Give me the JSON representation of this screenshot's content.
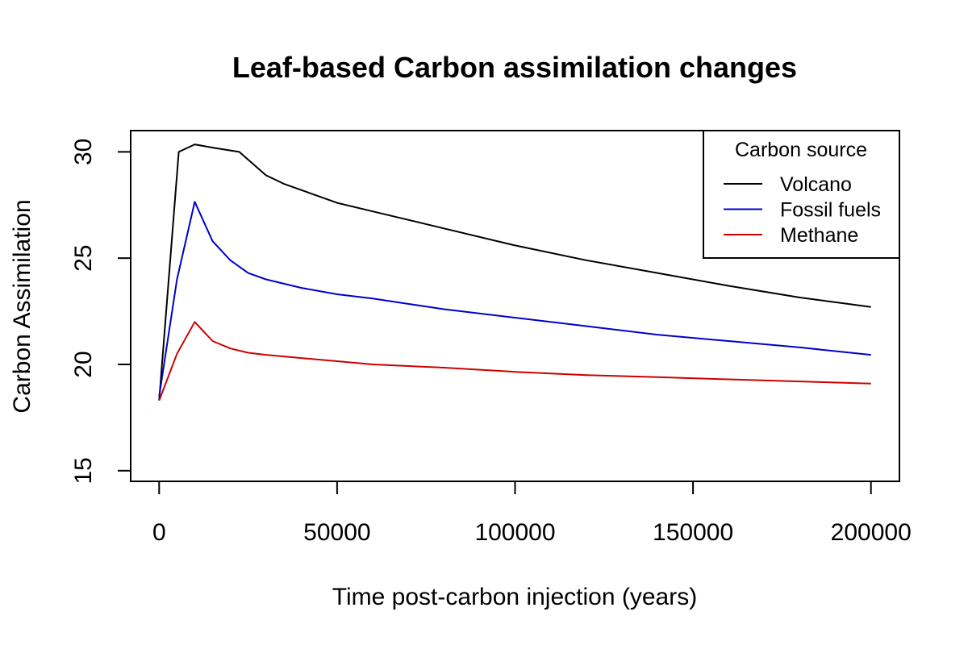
{
  "chart_data": {
    "type": "line",
    "title": "Leaf-based Carbon assimilation changes",
    "xlabel": "Time post-carbon injection (years)",
    "ylabel": "Carbon Assimilation",
    "xlim": [
      -8000,
      208000
    ],
    "ylim": [
      14.5,
      31
    ],
    "xticks": [
      0,
      50000,
      100000,
      150000,
      200000
    ],
    "xtick_labels": [
      "0",
      "50000",
      "100000",
      "150000",
      "200000"
    ],
    "yticks": [
      15,
      20,
      25,
      30
    ],
    "ytick_labels": [
      "15",
      "20",
      "25",
      "30"
    ],
    "grid": false,
    "legend": {
      "title": "Carbon source",
      "position": "top-right"
    },
    "series": [
      {
        "name": "Volcano",
        "color": "#000000",
        "x": [
          0,
          5500,
          10000,
          15000,
          22500,
          30000,
          35000,
          40000,
          50000,
          60000,
          70000,
          80000,
          100000,
          120000,
          140000,
          160000,
          180000,
          200000
        ],
        "y": [
          18.3,
          30.0,
          30.35,
          30.2,
          30.0,
          28.9,
          28.5,
          28.2,
          27.6,
          27.2,
          26.8,
          26.4,
          25.6,
          24.9,
          24.3,
          23.7,
          23.15,
          22.7
        ]
      },
      {
        "name": "Fossil fuels",
        "color": "#0000cc",
        "x": [
          0,
          5000,
          10000,
          15000,
          20000,
          25000,
          30000,
          40000,
          50000,
          60000,
          80000,
          100000,
          120000,
          140000,
          160000,
          180000,
          200000
        ],
        "y": [
          18.5,
          24.0,
          27.65,
          25.8,
          24.9,
          24.3,
          24.0,
          23.6,
          23.3,
          23.1,
          22.6,
          22.2,
          21.8,
          21.4,
          21.1,
          20.8,
          20.45
        ]
      },
      {
        "name": "Methane",
        "color": "#cc0000",
        "x": [
          0,
          5000,
          10000,
          15000,
          20000,
          25000,
          30000,
          40000,
          50000,
          60000,
          80000,
          100000,
          120000,
          140000,
          160000,
          180000,
          200000
        ],
        "y": [
          18.3,
          20.5,
          22.0,
          21.1,
          20.75,
          20.55,
          20.45,
          20.3,
          20.15,
          20.0,
          19.85,
          19.65,
          19.5,
          19.4,
          19.3,
          19.2,
          19.1
        ]
      }
    ]
  }
}
